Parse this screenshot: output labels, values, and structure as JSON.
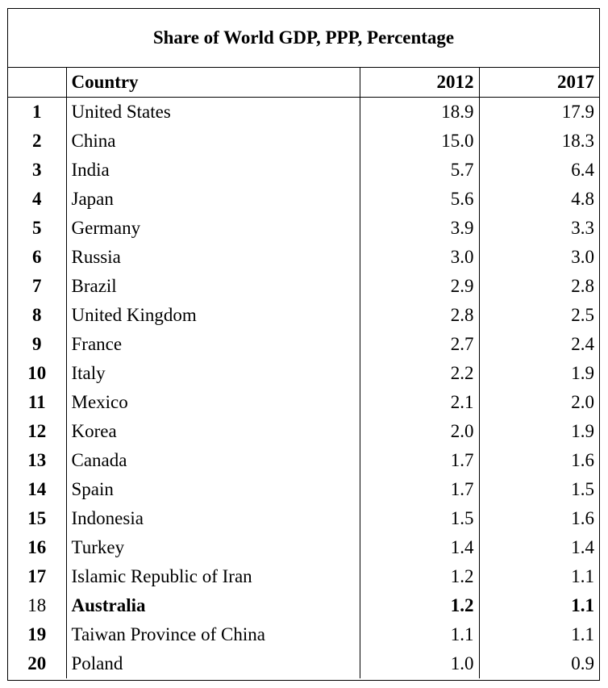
{
  "chart_data": {
    "type": "table",
    "title": "Share of World GDP, PPP, Percentage",
    "columns": [
      "",
      "Country",
      "2012",
      "2017"
    ],
    "highlight_country": "Australia",
    "rows": [
      {
        "rank": "1",
        "country": "United States",
        "v2012": "18.9",
        "v2017": "17.9"
      },
      {
        "rank": "2",
        "country": "China",
        "v2012": "15.0",
        "v2017": "18.3"
      },
      {
        "rank": "3",
        "country": "India",
        "v2012": "5.7",
        "v2017": "6.4"
      },
      {
        "rank": "4",
        "country": "Japan",
        "v2012": "5.6",
        "v2017": "4.8"
      },
      {
        "rank": "5",
        "country": "Germany",
        "v2012": "3.9",
        "v2017": "3.3"
      },
      {
        "rank": "6",
        "country": "Russia",
        "v2012": "3.0",
        "v2017": "3.0"
      },
      {
        "rank": "7",
        "country": "Brazil",
        "v2012": "2.9",
        "v2017": "2.8"
      },
      {
        "rank": "8",
        "country": "United Kingdom",
        "v2012": "2.8",
        "v2017": "2.5"
      },
      {
        "rank": "9",
        "country": "France",
        "v2012": "2.7",
        "v2017": "2.4"
      },
      {
        "rank": "10",
        "country": "Italy",
        "v2012": "2.2",
        "v2017": "1.9"
      },
      {
        "rank": "11",
        "country": "Mexico",
        "v2012": "2.1",
        "v2017": "2.0"
      },
      {
        "rank": "12",
        "country": "Korea",
        "v2012": "2.0",
        "v2017": "1.9"
      },
      {
        "rank": "13",
        "country": "Canada",
        "v2012": "1.7",
        "v2017": "1.6"
      },
      {
        "rank": "14",
        "country": "Spain",
        "v2012": "1.7",
        "v2017": "1.5"
      },
      {
        "rank": "15",
        "country": "Indonesia",
        "v2012": "1.5",
        "v2017": "1.6"
      },
      {
        "rank": "16",
        "country": "Turkey",
        "v2012": "1.4",
        "v2017": "1.4"
      },
      {
        "rank": "17",
        "country": "Islamic Republic of Iran",
        "v2012": "1.2",
        "v2017": "1.1"
      },
      {
        "rank": "18",
        "country": "Australia",
        "v2012": "1.2",
        "v2017": "1.1"
      },
      {
        "rank": "19",
        "country": "Taiwan Province of China",
        "v2012": "1.1",
        "v2017": "1.1"
      },
      {
        "rank": "20",
        "country": "Poland",
        "v2012": "1.0",
        "v2017": "0.9"
      }
    ]
  }
}
